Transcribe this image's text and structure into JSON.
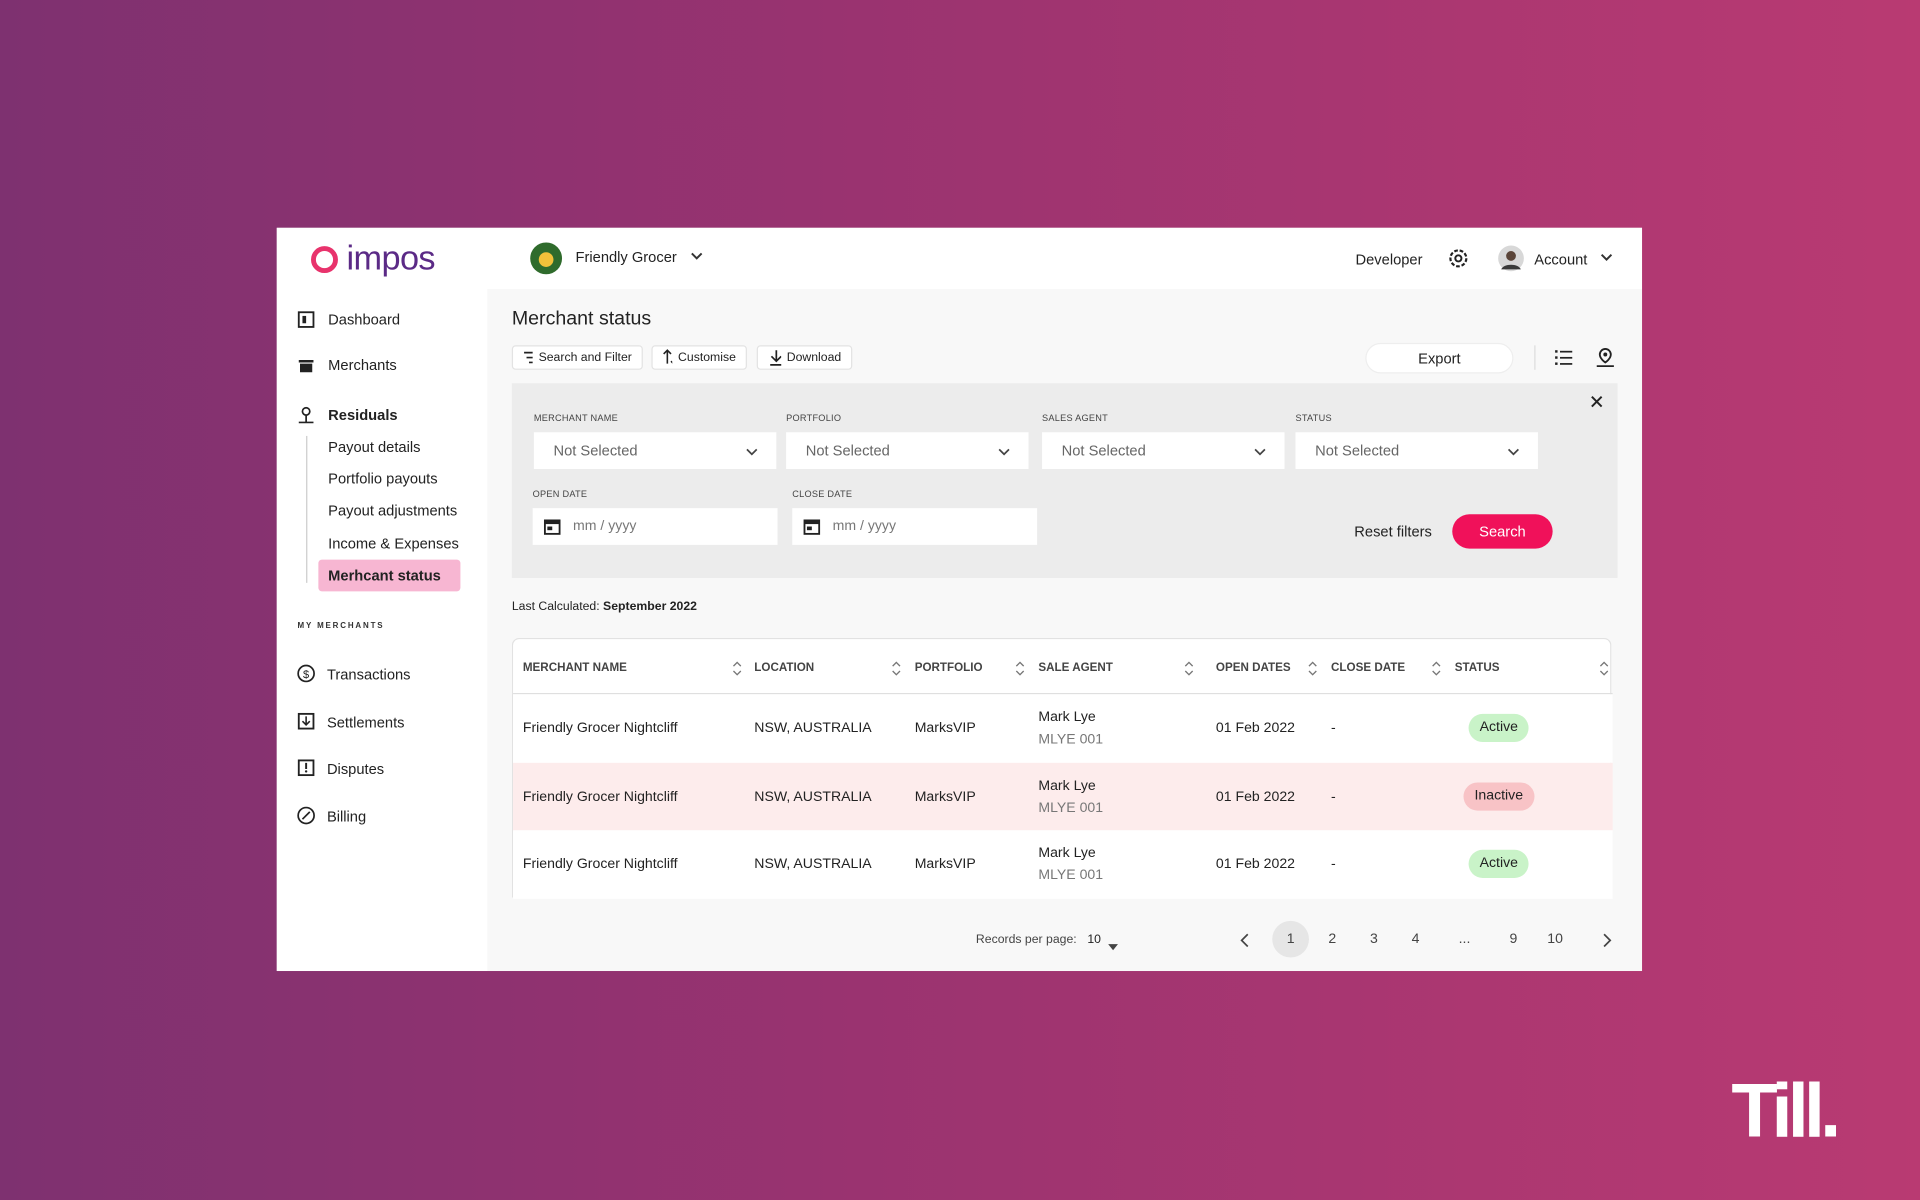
{
  "header": {
    "logo": "impos",
    "merchant": "Friendly Grocer",
    "developer": "Developer",
    "account": "Account"
  },
  "sidebar": {
    "main": [
      "Dashboard",
      "Merchants"
    ],
    "residuals": {
      "label": "Residuals",
      "items": [
        "Payout details",
        "Portfolio payouts",
        "Payout adjustments",
        "Income & Expenses",
        "Merhcant status"
      ],
      "active": 4
    },
    "section": "MY MERCHANTS",
    "merchants": [
      "Transactions",
      "Settlements",
      "Disputes",
      "Billing"
    ]
  },
  "page": {
    "title": "Merchant status",
    "toolbar": [
      "Search and Filter",
      "Customise",
      "Download"
    ],
    "export": "Export"
  },
  "filters": {
    "selects": [
      {
        "label": "MERCHANT NAME",
        "placeholder": "Not Selected"
      },
      {
        "label": "PORTFOLIO",
        "placeholder": "Not Selected"
      },
      {
        "label": "SALES AGENT",
        "placeholder": "Not Selected"
      },
      {
        "label": "STATUS",
        "placeholder": "Not Selected"
      }
    ],
    "dates": [
      {
        "label": "OPEN DATE",
        "placeholder": "mm / yyyy"
      },
      {
        "label": "CLOSE DATE",
        "placeholder": "mm / yyyy"
      }
    ],
    "reset": "Reset filters",
    "search": "Search"
  },
  "last_calculated": {
    "label": "Last Calculated:",
    "value": "September 2022"
  },
  "table": {
    "columns": [
      "MERCHANT NAME",
      "LOCATION",
      "PORTFOLIO",
      "SALE AGENT",
      "OPEN DATES",
      "CLOSE DATE",
      "STATUS"
    ],
    "rows": [
      {
        "merchant": "Friendly Grocer Nightcliff",
        "location": "NSW, AUSTRALIA",
        "portfolio": "MarksVIP",
        "agent": "Mark Lye",
        "agent_code": "MLYE 001",
        "open_date": "01 Feb 2022",
        "close_date": "-",
        "status": "Active",
        "status_color": "#c9f3c8",
        "row_color": "#ffffff"
      },
      {
        "merchant": "Friendly Grocer Nightcliff",
        "location": "NSW, AUSTRALIA",
        "portfolio": "MarksVIP",
        "agent": "Mark Lye",
        "agent_code": "MLYE 001",
        "open_date": "01 Feb 2022",
        "close_date": "-",
        "status": "Inactive",
        "status_color": "#f8c3c6",
        "row_color": "#fdecec"
      },
      {
        "merchant": "Friendly Grocer Nightcliff",
        "location": "NSW, AUSTRALIA",
        "portfolio": "MarksVIP",
        "agent": "Mark Lye",
        "agent_code": "MLYE 001",
        "open_date": "01 Feb 2022",
        "close_date": "-",
        "status": "Active",
        "status_color": "#c9f3c8",
        "row_color": "#ffffff"
      }
    ]
  },
  "pagination": {
    "label": "Records per page:",
    "per_page": "10",
    "pages": [
      "1",
      "2",
      "3",
      "4",
      "...",
      "9",
      "10"
    ],
    "current": 0
  },
  "brand": "Till."
}
